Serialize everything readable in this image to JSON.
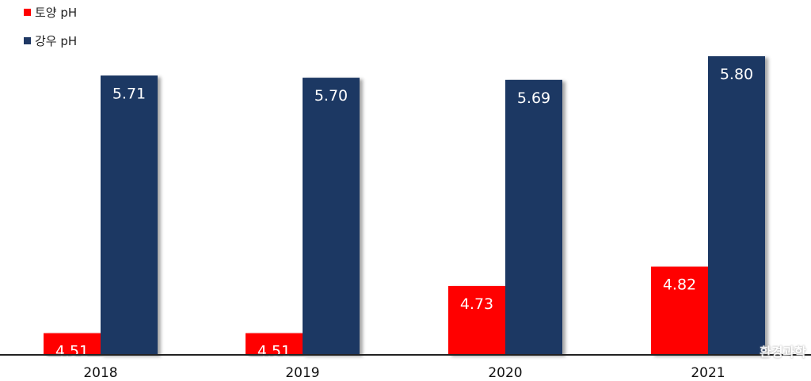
{
  "chart_data": {
    "type": "bar",
    "categories": [
      "2018",
      "2019",
      "2020",
      "2021"
    ],
    "series": [
      {
        "name": "토양 pH",
        "color": "#ff0000",
        "values": [
          4.51,
          4.51,
          4.73,
          4.82
        ]
      },
      {
        "name": "강우 pH",
        "color": "#1f3864",
        "values": [
          5.71,
          5.7,
          5.69,
          5.8
        ]
      }
    ],
    "legend_position": "top-left",
    "grid": false
  },
  "watermark": "환경과학"
}
